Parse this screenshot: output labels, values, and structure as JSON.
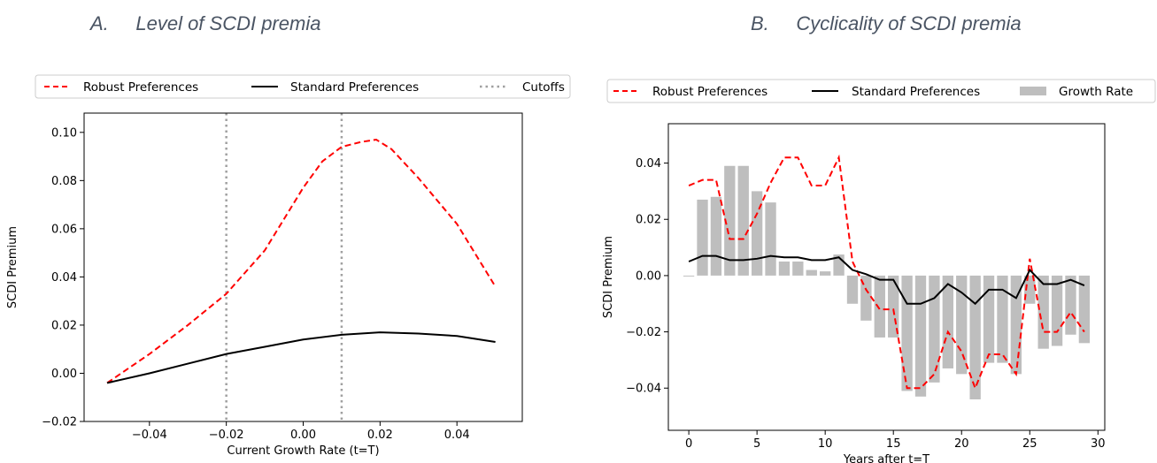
{
  "panels": [
    {
      "letter": "A.",
      "title": "Level of SCDI premia"
    },
    {
      "letter": "B.",
      "title": "Cyclicality of SCDI premia"
    }
  ],
  "chart_data": [
    {
      "type": "line",
      "title": "",
      "xlabel": "Current Growth Rate (t=T)",
      "ylabel": "SCDI Premium",
      "xlim": [
        -0.057,
        0.057
      ],
      "ylim": [
        -0.02,
        0.108
      ],
      "xticks": [
        -0.04,
        -0.02,
        0.0,
        0.02,
        0.04
      ],
      "xtick_labels": [
        "−0.04",
        "−0.02",
        "0.00",
        "0.02",
        "0.04"
      ],
      "yticks": [
        -0.02,
        0.0,
        0.02,
        0.04,
        0.06,
        0.08,
        0.1
      ],
      "ytick_labels": [
        "−0.02",
        "0.00",
        "0.02",
        "0.04",
        "0.06",
        "0.08",
        "0.10"
      ],
      "legend": {
        "placement": "top-outside",
        "entries": [
          "Robust Preferences",
          "Standard Preferences",
          "Cutoffs"
        ]
      },
      "series": [
        {
          "name": "Robust Preferences",
          "color": "#ff0000",
          "style": "dashed",
          "x": [
            -0.051,
            -0.04,
            -0.03,
            -0.02,
            -0.01,
            -0.005,
            0.0,
            0.005,
            0.01,
            0.015,
            0.019,
            0.023,
            0.03,
            0.04,
            0.05
          ],
          "y": [
            -0.004,
            0.008,
            0.02,
            0.033,
            0.051,
            0.064,
            0.077,
            0.088,
            0.094,
            0.096,
            0.097,
            0.093,
            0.081,
            0.062,
            0.036
          ]
        },
        {
          "name": "Standard Preferences",
          "color": "#000000",
          "style": "solid",
          "x": [
            -0.051,
            -0.04,
            -0.03,
            -0.02,
            -0.01,
            0.0,
            0.01,
            0.02,
            0.03,
            0.04,
            0.05
          ],
          "y": [
            -0.004,
            0.0,
            0.004,
            0.008,
            0.011,
            0.014,
            0.016,
            0.017,
            0.0165,
            0.0155,
            0.013
          ]
        }
      ],
      "cutoffs": {
        "name": "Cutoffs",
        "color": "#a0a0a0",
        "style": "dotted",
        "x": [
          -0.02,
          0.01
        ]
      }
    },
    {
      "type": "bar+line",
      "title": "",
      "xlabel": "Years after t=T",
      "ylabel": "SCDI Premium",
      "xlim": [
        -1.5,
        30.5
      ],
      "ylim": [
        -0.055,
        0.054
      ],
      "xticks": [
        0,
        5,
        10,
        15,
        20,
        25,
        30
      ],
      "xtick_labels": [
        "0",
        "5",
        "10",
        "15",
        "20",
        "25",
        "30"
      ],
      "yticks": [
        -0.04,
        -0.02,
        0.0,
        0.02,
        0.04
      ],
      "ytick_labels": [
        "−0.04",
        "−0.02",
        "0.00",
        "0.02",
        "0.04"
      ],
      "legend": {
        "placement": "top-outside",
        "entries": [
          "Robust Preferences",
          "Standard Preferences",
          "Growth Rate"
        ]
      },
      "years": [
        0,
        1,
        2,
        3,
        4,
        5,
        6,
        7,
        8,
        9,
        10,
        11,
        12,
        13,
        14,
        15,
        16,
        17,
        18,
        19,
        20,
        21,
        22,
        23,
        24,
        25,
        26,
        27,
        28,
        29
      ],
      "series": [
        {
          "name": "Robust Preferences",
          "color": "#ff0000",
          "style": "dashed",
          "values": [
            0.032,
            0.034,
            0.034,
            0.013,
            0.013,
            0.022,
            0.033,
            0.042,
            0.042,
            0.032,
            0.032,
            0.042,
            0.005,
            -0.005,
            -0.012,
            -0.012,
            -0.04,
            -0.04,
            -0.035,
            -0.02,
            -0.027,
            -0.04,
            -0.028,
            -0.028,
            -0.035,
            0.006,
            -0.02,
            -0.02,
            -0.013,
            -0.02
          ]
        },
        {
          "name": "Standard Preferences",
          "color": "#000000",
          "style": "solid",
          "values": [
            0.005,
            0.007,
            0.007,
            0.0055,
            0.0055,
            0.006,
            0.007,
            0.0065,
            0.0065,
            0.0055,
            0.0055,
            0.0065,
            0.002,
            0.0005,
            -0.0015,
            -0.0015,
            -0.01,
            -0.01,
            -0.008,
            -0.003,
            -0.006,
            -0.01,
            -0.005,
            -0.005,
            -0.008,
            0.002,
            -0.003,
            -0.003,
            -0.0015,
            -0.0035
          ]
        },
        {
          "name": "Growth Rate",
          "color": "#bebebe",
          "style": "bar",
          "values": [
            -0.0003,
            0.027,
            0.028,
            0.039,
            0.039,
            0.03,
            0.026,
            0.005,
            0.005,
            0.002,
            0.0015,
            0.0075,
            -0.01,
            -0.016,
            -0.022,
            -0.022,
            -0.041,
            -0.043,
            -0.038,
            -0.033,
            -0.035,
            -0.044,
            -0.031,
            -0.031,
            -0.035,
            -0.01,
            -0.026,
            -0.025,
            -0.021,
            -0.024
          ]
        }
      ]
    }
  ]
}
